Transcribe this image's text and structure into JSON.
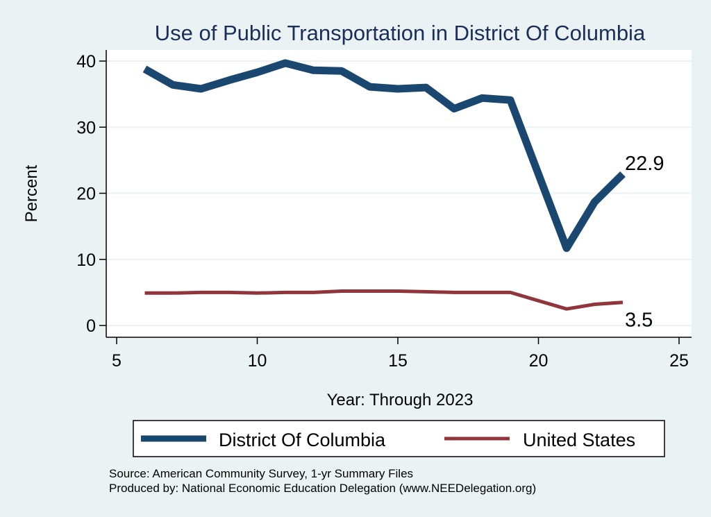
{
  "chart_data": {
    "type": "line",
    "title": "Use of Public Transportation in District Of Columbia",
    "xlabel": "Year: Through 2023",
    "ylabel": "Percent",
    "xlim": [
      5,
      25
    ],
    "ylim": [
      0,
      40
    ],
    "xticks": [
      5,
      10,
      15,
      20,
      25
    ],
    "yticks": [
      0,
      10,
      20,
      30,
      40
    ],
    "grid": true,
    "legend_position": "bottom",
    "series": [
      {
        "name": "District Of Columbia",
        "color": "#1a476f",
        "x": [
          6,
          7,
          8,
          9,
          10,
          11,
          12,
          13,
          14,
          15,
          16,
          17,
          18,
          19,
          21,
          22,
          23
        ],
        "values": [
          38.8,
          36.4,
          35.8,
          37.1,
          38.3,
          39.7,
          38.6,
          38.5,
          36.1,
          35.8,
          36.0,
          32.8,
          34.4,
          34.1,
          11.7,
          18.7,
          22.9
        ],
        "end_label": "22.9"
      },
      {
        "name": "United States",
        "color": "#90353b",
        "x": [
          6,
          7,
          8,
          9,
          10,
          11,
          12,
          13,
          14,
          15,
          16,
          17,
          18,
          19,
          21,
          22,
          23
        ],
        "values": [
          4.9,
          4.9,
          5.0,
          5.0,
          4.9,
          5.0,
          5.0,
          5.2,
          5.2,
          5.2,
          5.1,
          5.0,
          5.0,
          5.0,
          2.5,
          3.2,
          3.5
        ],
        "end_label": "3.5"
      }
    ],
    "notes": [
      "Source: American Community Survey, 1-yr Summary Files",
      "Produced by: National Economic Education Delegation (www.NEEDelegation.org)"
    ]
  }
}
